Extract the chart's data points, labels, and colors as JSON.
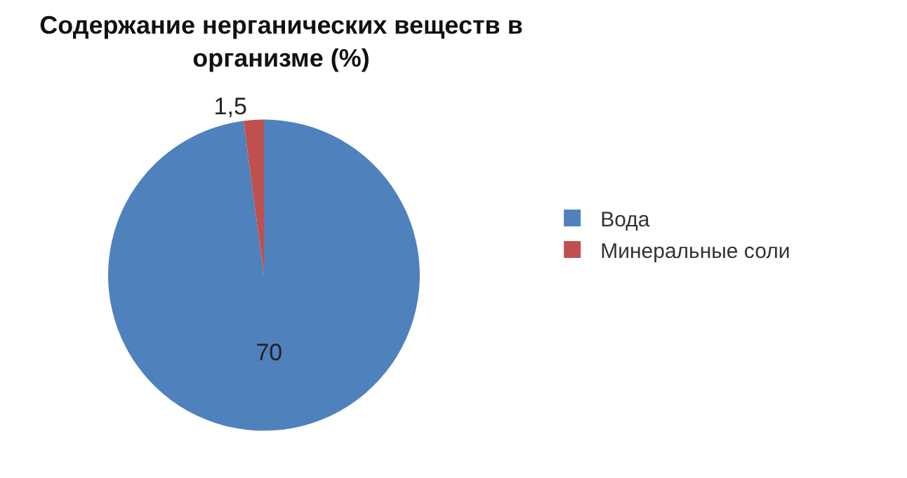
{
  "chart_data": {
    "type": "pie",
    "title": "Содержание нерганических веществ в\nорганизме (%)",
    "categories": [
      "Вода",
      "Минеральные соли"
    ],
    "values": [
      70,
      1.5
    ],
    "colors": [
      "#4f81bd",
      "#c0504d"
    ],
    "value_labels": [
      "70",
      "1,5"
    ],
    "legend": "right"
  }
}
